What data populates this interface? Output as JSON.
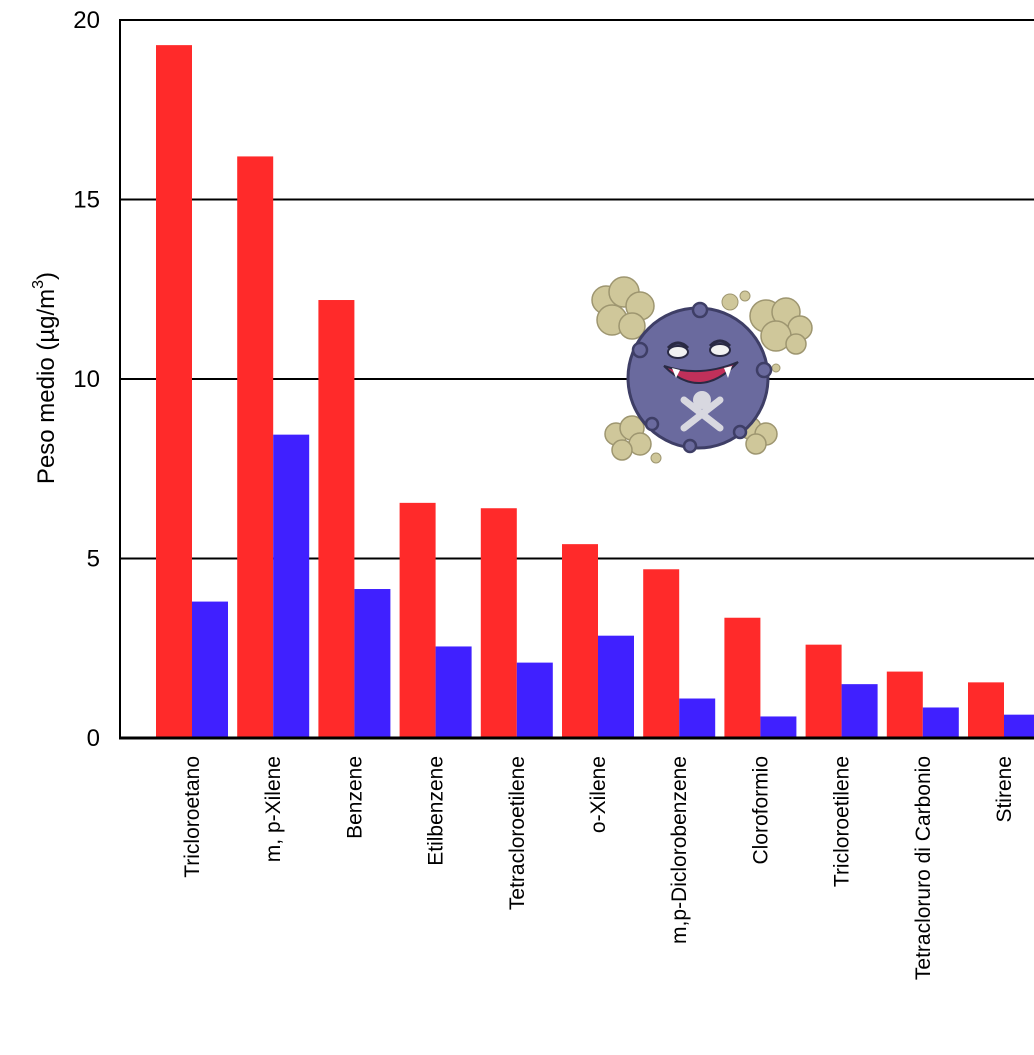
{
  "chart_data": {
    "type": "bar",
    "title": "",
    "xlabel": "",
    "ylabel": "Peso medio  (µg/m",
    "ylabel_sup": "3",
    "ylabel_close": ")",
    "ylim": [
      0,
      20
    ],
    "yticks": [
      0,
      5,
      10,
      15,
      20
    ],
    "grid": true,
    "legend": "none",
    "categories": [
      "Tricloroetano",
      "m, p-Xilene",
      "Benzene",
      "Etilbenzene",
      "Tetracloroetilene",
      "o-Xilene",
      "m,p-Diclorobenzene",
      "Cloroformio",
      "Tricloroetilene",
      "Tetracloruro di Carbonio",
      "Stirene"
    ],
    "series": [
      {
        "color": "#ff2a2a",
        "values": [
          19.3,
          16.2,
          12.2,
          6.55,
          6.4,
          5.4,
          4.7,
          3.35,
          2.6,
          1.85,
          1.55
        ]
      },
      {
        "color": "#4020ff",
        "values": [
          3.8,
          8.45,
          4.15,
          2.55,
          2.1,
          2.85,
          1.1,
          0.6,
          1.5,
          0.85,
          0.65
        ]
      }
    ]
  },
  "decoration": {
    "icon": "smoke-ball-creature-icon",
    "body_color": "#6a6a9e",
    "smoke_color": "#cfc79a"
  }
}
